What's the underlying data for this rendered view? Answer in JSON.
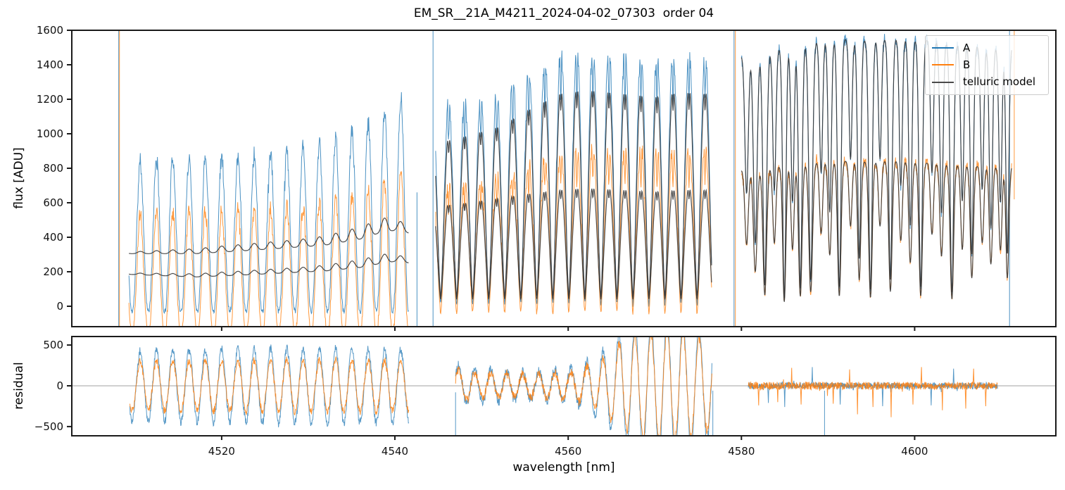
{
  "figure": {
    "title": "EM_SR__21A_M4211_2024-04-02_07303  order 04"
  },
  "chart_data": {
    "type": "line",
    "title": "EM_SR__21A_M4211_2024-04-02_07303  order 04",
    "xlabel": "wavelength [nm]",
    "xlim": [
      4502.7,
      4616.3
    ],
    "xticks": [
      4520,
      4540,
      4560,
      4580,
      4600
    ],
    "grid": false,
    "legend_position": "upper right",
    "legend": [
      {
        "label": "A",
        "color": "#1f77b4"
      },
      {
        "label": "B",
        "color": "#ff7f0e"
      },
      {
        "label": "telluric model",
        "color": "#4a4a4a"
      }
    ],
    "panels": [
      {
        "name": "flux",
        "ylabel": "flux [ADU]",
        "ylim": [
          -118,
          1600
        ],
        "yticks": [
          0,
          200,
          400,
          600,
          800,
          1000,
          1200,
          1400,
          1600
        ]
      },
      {
        "name": "residual",
        "ylabel": "residual",
        "ylim": [
          -613,
          605
        ],
        "yticks": [
          -500,
          0,
          500
        ],
        "zeroline": true
      }
    ],
    "flux_segments": [
      {
        "range": [
          4509.3,
          4541.6
        ],
        "kind": "fringe",
        "period": 1.88,
        "phase": 4510.13,
        "A": {
          "peaks": [
            [
              4509.3,
              830
            ],
            [
              4515,
              860
            ],
            [
              4522,
              870
            ],
            [
              4528,
              900
            ],
            [
              4532,
              950
            ],
            [
              4536,
              1030
            ],
            [
              4539,
              1130
            ],
            [
              4541.6,
              1260
            ]
          ],
          "valleys": -30,
          "noise": 48
        },
        "B": {
          "peaks": [
            [
              4509.3,
              530
            ],
            [
              4515,
              545
            ],
            [
              4522,
              555
            ],
            [
              4528,
              570
            ],
            [
              4532,
              600
            ],
            [
              4536,
              650
            ],
            [
              4539,
              710
            ],
            [
              4541.6,
              800
            ]
          ],
          "valleys": -150,
          "noise": 48
        },
        "TA": {
          "base": [
            [
              4509.3,
              305
            ],
            [
              4517,
              305
            ],
            [
              4522,
              320
            ],
            [
              4528,
              340
            ],
            [
              4532,
              355
            ],
            [
              4536,
              390
            ],
            [
              4538.5,
              430
            ],
            [
              4540,
              440
            ],
            [
              4541.6,
              425
            ]
          ],
          "bump": [
            [
              4509.3,
              10
            ],
            [
              4520,
              35
            ],
            [
              4530,
              45
            ],
            [
              4536,
              70
            ],
            [
              4539,
              80
            ],
            [
              4541.6,
              45
            ]
          ]
        },
        "TB": {
          "base": [
            [
              4509.3,
              185
            ],
            [
              4517,
              170
            ],
            [
              4522,
              180
            ],
            [
              4528,
              195
            ],
            [
              4532,
              205
            ],
            [
              4536,
              225
            ],
            [
              4538.5,
              250
            ],
            [
              4540,
              260
            ],
            [
              4541.6,
              252
            ]
          ],
          "bump": [
            [
              4509.3,
              8
            ],
            [
              4520,
              22
            ],
            [
              4530,
              28
            ],
            [
              4536,
              45
            ],
            [
              4539,
              50
            ],
            [
              4541.6,
              28
            ]
          ]
        }
      },
      {
        "range": [
          4544.7,
          4576.6
        ],
        "kind": "arches",
        "period": 1.85,
        "phase": 4545.74,
        "A": {
          "peaks": [
            [
              4544.7,
              1180
            ],
            [
              4548,
              1210
            ],
            [
              4552,
              1260
            ],
            [
              4556,
              1420
            ],
            [
              4559,
              1500
            ],
            [
              4562,
              1520
            ],
            [
              4566,
              1500
            ],
            [
              4570,
              1480
            ],
            [
              4573,
              1500
            ],
            [
              4576.6,
              1490
            ]
          ],
          "valleys": 10,
          "noise": 55,
          "sub": 0.22
        },
        "B": {
          "peaks": [
            [
              4544.7,
              700
            ],
            [
              4548,
              730
            ],
            [
              4552,
              780
            ],
            [
              4556,
              860
            ],
            [
              4559,
              920
            ],
            [
              4562,
              950
            ],
            [
              4566,
              930
            ],
            [
              4570,
              920
            ],
            [
              4573,
              940
            ],
            [
              4576.6,
              930
            ]
          ],
          "valleys": -40,
          "noise": 50,
          "sub": 0.22
        },
        "TA": {
          "peaks": [
            [
              4544.7,
              980
            ],
            [
              4548,
              1020
            ],
            [
              4552,
              1080
            ],
            [
              4556,
              1200
            ],
            [
              4559,
              1280
            ],
            [
              4562,
              1300
            ],
            [
              4566,
              1280
            ],
            [
              4570,
              1260
            ],
            [
              4573,
              1290
            ],
            [
              4576.6,
              1280
            ]
          ],
          "valleys": 55,
          "sub": 0.12
        },
        "TB": {
          "peaks": [
            [
              4544.7,
              600
            ],
            [
              4548,
              620
            ],
            [
              4552,
              650
            ],
            [
              4556,
              680
            ],
            [
              4559,
              700
            ],
            [
              4562,
              710
            ],
            [
              4566,
              700
            ],
            [
              4570,
              690
            ],
            [
              4573,
              700
            ],
            [
              4576.6,
              700
            ]
          ],
          "valleys": 40,
          "sub": 0.12
        }
      },
      {
        "range": [
          4580.0,
          4611.2
        ],
        "kind": "absorption",
        "A": {
          "cont": [
            [
              4580,
              1450
            ],
            [
              4583,
              1480
            ],
            [
              4586,
              1515
            ],
            [
              4590,
              1555
            ],
            [
              4594,
              1545
            ],
            [
              4598,
              1555
            ],
            [
              4602,
              1545
            ],
            [
              4605,
              1520
            ],
            [
              4608,
              1505
            ],
            [
              4611.2,
              1500
            ]
          ],
          "noise": 42
        },
        "B": {
          "cont": [
            [
              4580,
              790
            ],
            [
              4583,
              805
            ],
            [
              4586,
              820
            ],
            [
              4590,
              845
            ],
            [
              4594,
              840
            ],
            [
              4598,
              845
            ],
            [
              4602,
              830
            ],
            [
              4605,
              820
            ],
            [
              4608,
              812
            ],
            [
              4611.2,
              808
            ]
          ],
          "noise": 36
        },
        "lines": [
          [
            4580.6,
            0.55,
            0.28
          ],
          [
            4581.6,
            0.75,
            0.3
          ],
          [
            4582.7,
            0.92,
            0.3
          ],
          [
            4583.8,
            0.55,
            0.25
          ],
          [
            4584.95,
            0.97,
            0.26
          ],
          [
            4585.9,
            0.6,
            0.25
          ],
          [
            4586.8,
            0.93,
            0.28
          ],
          [
            4588.0,
            0.9,
            0.3
          ],
          [
            4589.2,
            0.5,
            0.25
          ],
          [
            4590.2,
            0.65,
            0.26
          ],
          [
            4591.3,
            0.93,
            0.28
          ],
          [
            4592.6,
            0.45,
            0.24
          ],
          [
            4593.6,
            0.82,
            0.26
          ],
          [
            4594.9,
            0.94,
            0.28
          ],
          [
            4596.0,
            0.45,
            0.24
          ],
          [
            4597.2,
            0.9,
            0.28
          ],
          [
            4598.4,
            0.55,
            0.25
          ],
          [
            4599.5,
            0.7,
            0.26
          ],
          [
            4600.7,
            0.93,
            0.28
          ],
          [
            4602.0,
            0.5,
            0.25
          ],
          [
            4603.1,
            0.65,
            0.26
          ],
          [
            4604.3,
            0.95,
            0.28
          ],
          [
            4605.5,
            0.6,
            0.25
          ],
          [
            4606.6,
            0.8,
            0.26
          ],
          [
            4607.8,
            0.55,
            0.25
          ],
          [
            4608.8,
            0.7,
            0.26
          ],
          [
            4609.9,
            0.6,
            0.25
          ],
          [
            4610.7,
            0.8,
            0.24
          ]
        ]
      }
    ],
    "residual_segments": [
      {
        "range": [
          4509.4,
          4541.6
        ],
        "kind": "sine",
        "period": 1.88,
        "phase": 4510.13,
        "A": {
          "amp": [
            [
              4509.4,
              430
            ],
            [
              4520,
              450
            ],
            [
              4530,
              460
            ],
            [
              4541.6,
              440
            ]
          ],
          "noise": 55
        },
        "B": {
          "amp": [
            [
              4509.4,
              300
            ],
            [
              4520,
              310
            ],
            [
              4530,
              320
            ],
            [
              4541.6,
              310
            ]
          ],
          "noise": 45
        }
      },
      {
        "range": [
          4547.0,
          4576.6
        ],
        "kind": "sine",
        "period": 1.85,
        "phase": 4546.9,
        "A": {
          "amp": [
            [
              4547,
              260
            ],
            [
              4550,
              190
            ],
            [
              4556,
              170
            ],
            [
              4561,
              220
            ],
            [
              4564,
              420
            ],
            [
              4566,
              650
            ],
            [
              4569,
              820
            ],
            [
              4573,
              820
            ],
            [
              4576.6,
              650
            ]
          ],
          "noise": 62
        },
        "B": {
          "amp": [
            [
              4547,
              200
            ],
            [
              4550,
              150
            ],
            [
              4556,
              140
            ],
            [
              4561,
              180
            ],
            [
              4564,
              330
            ],
            [
              4566,
              520
            ],
            [
              4569,
              650
            ],
            [
              4573,
              660
            ],
            [
              4576.6,
              520
            ]
          ],
          "noise": 55
        }
      },
      {
        "range": [
          4580.8,
          4609.6
        ],
        "kind": "noise",
        "A": {
          "sigma": 40,
          "spikes": [
            [
              4583.1,
              -210
            ],
            [
              4585.0,
              -260
            ],
            [
              4588.2,
              230
            ],
            [
              4591.4,
              -230
            ],
            [
              4596.3,
              -250
            ],
            [
              4601.9,
              -240
            ],
            [
              4604.5,
              210
            ]
          ]
        },
        "B": {
          "sigma": 48,
          "spikes": [
            [
              4582.0,
              -240
            ],
            [
              4584.2,
              -200
            ],
            [
              4585.8,
              220
            ],
            [
              4586.9,
              -230
            ],
            [
              4590.6,
              -220
            ],
            [
              4592.5,
              200
            ],
            [
              4593.4,
              -350
            ],
            [
              4595.2,
              -260
            ],
            [
              4597.3,
              -385
            ],
            [
              4599.8,
              -230
            ],
            [
              4600.8,
              230
            ],
            [
              4603.2,
              -300
            ],
            [
              4605.9,
              -280
            ],
            [
              4606.8,
              210
            ],
            [
              4608.2,
              -250
            ]
          ]
        }
      }
    ],
    "flux_vlines": [
      {
        "x": 4508.12,
        "series": "A",
        "v0": -118,
        "v1": 1600
      },
      {
        "x": 4508.2,
        "series": "B",
        "v0": -118,
        "v1": 1600
      },
      {
        "x": 4542.55,
        "series": "A",
        "v0": -118,
        "v1": 660
      },
      {
        "x": 4544.4,
        "series": "A",
        "v0": -118,
        "v1": 1600
      },
      {
        "x": 4579.15,
        "series": "A",
        "v0": -118,
        "v1": 1600
      },
      {
        "x": 4579.3,
        "series": "B",
        "v0": -118,
        "v1": 1600
      },
      {
        "x": 4610.95,
        "series": "A",
        "v0": -118,
        "v1": 1600
      },
      {
        "x": 4611.5,
        "series": "B",
        "v0": 620,
        "v1": 1600
      }
    ],
    "residual_vlines": [
      {
        "x": 4547.0,
        "series": "A",
        "v0": -613,
        "v1": -80
      },
      {
        "x": 4576.7,
        "series": "A",
        "v0": -613,
        "v1": -60
      },
      {
        "x": 4589.6,
        "series": "A",
        "v0": -613,
        "v1": -60
      }
    ]
  }
}
